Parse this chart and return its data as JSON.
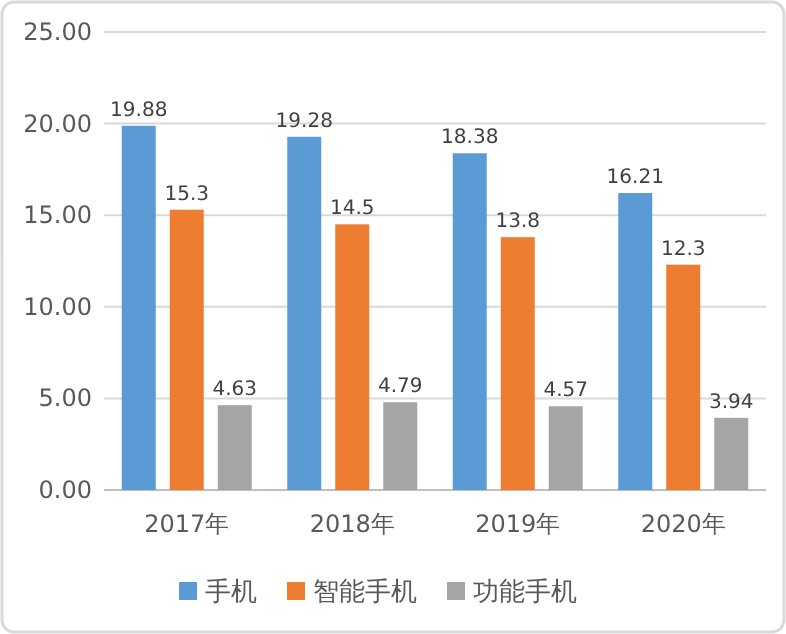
{
  "chart_data": {
    "type": "bar",
    "categories": [
      "2017年",
      "2018年",
      "2019年",
      "2020年"
    ],
    "series": [
      {
        "name": "手机",
        "color": "#5b9bd5",
        "values": [
          19.88,
          19.28,
          18.38,
          16.21
        ]
      },
      {
        "name": "智能手机",
        "color": "#ed7d31",
        "values": [
          15.3,
          14.5,
          13.8,
          12.3
        ]
      },
      {
        "name": "功能手机",
        "color": "#a5a5a5",
        "values": [
          4.63,
          4.79,
          4.57,
          3.94
        ]
      }
    ],
    "ylim": [
      0,
      25
    ],
    "yticks": [
      {
        "value": 0,
        "label": "0.00"
      },
      {
        "value": 5,
        "label": "5.00"
      },
      {
        "value": 10,
        "label": "10.00"
      },
      {
        "value": 15,
        "label": "15.00"
      },
      {
        "value": 20,
        "label": "20.00"
      },
      {
        "value": 25,
        "label": "25.00"
      }
    ],
    "grid": "y",
    "legend": "bottom",
    "data_labels": true
  }
}
